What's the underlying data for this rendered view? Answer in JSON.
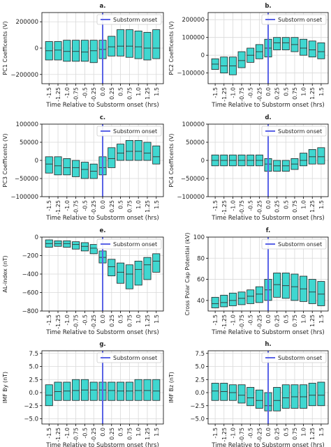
{
  "figure": {
    "colors": {
      "box_fill": "#3fd7d0",
      "box_edge": "#1f1f1f",
      "median": "#333333",
      "onset_line": "#5a63e6",
      "grid": "#d9d9d9"
    }
  },
  "chart_data": [
    {
      "panel_letter": "a.",
      "type": "box",
      "ylabel": "PC1 Coefficents (V)",
      "xlabel": "Time Relative to Substorm onset (hrs)",
      "legend": "Substorm onset",
      "ylim": [
        -270000,
        270000
      ],
      "yticks": [
        -200000,
        0,
        200000
      ],
      "yticklabels": [
        "−200000",
        "0",
        "200000"
      ],
      "x": [
        -1.5,
        -1.25,
        -1.0,
        -0.75,
        -0.5,
        -0.25,
        0.0,
        0.25,
        0.5,
        0.75,
        1.0,
        1.25,
        1.5
      ],
      "xticklabels": [
        "-1.5",
        "-1.25",
        "-1.0",
        "-0.75",
        "-0.5",
        "-0.25",
        "0.0",
        "0.25",
        "0.5",
        "0.75",
        "1.0",
        "1.25",
        "1.5"
      ],
      "q1": [
        -90000,
        -90000,
        -100000,
        -100000,
        -100000,
        -110000,
        -80000,
        -60000,
        -60000,
        -70000,
        -80000,
        -90000,
        -80000
      ],
      "median": [
        -20000,
        -15000,
        -25000,
        -25000,
        -30000,
        -20000,
        -10000,
        10000,
        15000,
        15000,
        10000,
        0,
        0
      ],
      "q3": [
        50000,
        50000,
        60000,
        60000,
        60000,
        60000,
        60000,
        90000,
        140000,
        140000,
        130000,
        120000,
        140000
      ]
    },
    {
      "panel_letter": "b.",
      "type": "box",
      "ylabel": "PC2 Coefficents (V)",
      "xlabel": "Time Relative to Substorm onset (hrs)",
      "legend": "Substorm onset",
      "ylim": [
        -160000,
        240000
      ],
      "yticks": [
        -100000,
        0,
        100000,
        200000
      ],
      "yticklabels": [
        "−100000",
        "0",
        "100000",
        "200000"
      ],
      "x": [
        -1.5,
        -1.25,
        -1.0,
        -0.75,
        -0.5,
        -0.25,
        0.0,
        0.25,
        0.5,
        0.75,
        1.0,
        1.25,
        1.5
      ],
      "xticklabels": [
        "-1.5",
        "-1.25",
        "-1.0",
        "-0.75",
        "-0.5",
        "-0.25",
        "0.0",
        "0.25",
        "0.5",
        "0.75",
        "1.0",
        "1.25",
        "1.5"
      ],
      "q1": [
        -80000,
        -100000,
        -110000,
        -70000,
        -40000,
        -20000,
        -10000,
        30000,
        30000,
        20000,
        0,
        -10000,
        -20000
      ],
      "median": [
        -50000,
        -60000,
        -60000,
        -30000,
        0,
        20000,
        40000,
        70000,
        70000,
        60000,
        40000,
        30000,
        20000
      ],
      "q3": [
        -20000,
        -10000,
        -10000,
        20000,
        40000,
        60000,
        90000,
        100000,
        100000,
        100000,
        90000,
        80000,
        70000
      ]
    },
    {
      "panel_letter": "c.",
      "type": "box",
      "ylabel": "PC3 Coefficents (V)",
      "xlabel": "Time Relative to Substorm onset (hrs)",
      "legend": "Substorm onset",
      "ylim": [
        -100000,
        100000
      ],
      "yticks": [
        -100000,
        -50000,
        0,
        50000,
        100000
      ],
      "yticklabels": [
        "−100000",
        "−50000",
        "0",
        "50000",
        "100000"
      ],
      "x": [
        -1.5,
        -1.25,
        -1.0,
        -0.75,
        -0.5,
        -0.25,
        0.0,
        0.25,
        0.5,
        0.75,
        1.0,
        1.25,
        1.5
      ],
      "xticklabels": [
        "-1.5",
        "-1.25",
        "-1.0",
        "-0.75",
        "-0.5",
        "-0.25",
        "0.0",
        "0.25",
        "0.5",
        "0.75",
        "1.0",
        "1.25",
        "1.5"
      ],
      "q1": [
        -35000,
        -40000,
        -40000,
        -45000,
        -50000,
        -50000,
        -40000,
        -20000,
        0,
        0,
        0,
        0,
        -10000
      ],
      "median": [
        -10000,
        -15000,
        -20000,
        -20000,
        -25000,
        -30000,
        -20000,
        5000,
        20000,
        25000,
        25000,
        20000,
        10000
      ],
      "q3": [
        10000,
        10000,
        5000,
        0,
        -5000,
        -10000,
        10000,
        35000,
        45000,
        55000,
        55000,
        50000,
        40000
      ]
    },
    {
      "panel_letter": "d.",
      "type": "box",
      "ylabel": "PC4 Coefficents (V)",
      "xlabel": "Time Relative to Substorm onset (hrs)",
      "legend": "Substorm onset",
      "ylim": [
        -100000,
        100000
      ],
      "yticks": [
        -100000,
        -50000,
        0,
        50000,
        100000
      ],
      "yticklabels": [
        "−100000",
        "−50000",
        "0",
        "50000",
        "100000"
      ],
      "x": [
        -1.5,
        -1.25,
        -1.0,
        -0.75,
        -0.5,
        -0.25,
        0.0,
        0.25,
        0.5,
        0.75,
        1.0,
        1.25,
        1.5
      ],
      "xticklabels": [
        "-1.5",
        "-1.25",
        "-1.0",
        "-0.75",
        "-0.5",
        "-0.25",
        "0.0",
        "0.25",
        "0.5",
        "0.75",
        "1.0",
        "1.25",
        "1.5"
      ],
      "q1": [
        -15000,
        -15000,
        -15000,
        -15000,
        -15000,
        -15000,
        -30000,
        -30000,
        -30000,
        -25000,
        -15000,
        -10000,
        -10000
      ],
      "median": [
        0,
        0,
        0,
        0,
        0,
        0,
        -10000,
        -15000,
        -15000,
        -10000,
        0,
        10000,
        10000
      ],
      "q3": [
        15000,
        15000,
        15000,
        15000,
        15000,
        15000,
        5000,
        0,
        0,
        5000,
        20000,
        30000,
        35000
      ]
    },
    {
      "panel_letter": "e.",
      "type": "box",
      "ylabel": "AL-index (nT)",
      "xlabel": "Time Relative to Substorm onset (hrs)",
      "legend": "Substorm onset",
      "ylim": [
        -800,
        0
      ],
      "yticks": [
        -800,
        -600,
        -400,
        -200,
        0
      ],
      "yticklabels": [
        "−800",
        "−600",
        "−400",
        "−200",
        "0"
      ],
      "x": [
        -1.5,
        -1.25,
        -1.0,
        -0.75,
        -0.5,
        -0.25,
        0.0,
        0.25,
        0.5,
        0.75,
        1.0,
        1.25,
        1.5
      ],
      "xticklabels": [
        "-1.5",
        "-1.25",
        "-1.0",
        "-0.75",
        "-0.5",
        "-0.25",
        "0.0",
        "0.25",
        "0.5",
        "0.75",
        "1.0",
        "1.25",
        "1.5"
      ],
      "q1": [
        -110,
        -100,
        -110,
        -130,
        -150,
        -180,
        -280,
        -420,
        -500,
        -560,
        -520,
        -460,
        -380
      ],
      "median": [
        -70,
        -70,
        -70,
        -80,
        -100,
        -120,
        -220,
        -320,
        -380,
        -400,
        -350,
        -300,
        -260
      ],
      "q3": [
        -30,
        -40,
        -40,
        -50,
        -60,
        -80,
        -150,
        -240,
        -280,
        -300,
        -260,
        -220,
        -180
      ]
    },
    {
      "panel_letter": "f.",
      "type": "box",
      "ylabel": "Cross Polar Cap Potential (kV)",
      "xlabel": "Time Relative to Substorm onset (hrs)",
      "legend": "Substorm onset",
      "ylim": [
        30,
        100
      ],
      "yticks": [
        40,
        60,
        80,
        100
      ],
      "yticklabels": [
        "40",
        "60",
        "80",
        "100"
      ],
      "x": [
        -1.5,
        -1.25,
        -1.0,
        -0.75,
        -0.5,
        -0.25,
        0.0,
        0.25,
        0.5,
        0.75,
        1.0,
        1.25,
        1.5
      ],
      "xticklabels": [
        "-1.5",
        "-1.25",
        "-1.0",
        "-0.75",
        "-0.5",
        "-0.25",
        "0.0",
        "0.25",
        "0.5",
        "0.75",
        "1.0",
        "1.25",
        "1.5"
      ],
      "q1": [
        33,
        34,
        35,
        36,
        37,
        38,
        40,
        43,
        42,
        40,
        39,
        37,
        35
      ],
      "median": [
        37,
        38,
        40,
        42,
        44,
        46,
        50,
        55,
        54,
        53,
        51,
        48,
        46
      ],
      "q3": [
        43,
        45,
        47,
        48,
        50,
        53,
        60,
        66,
        66,
        65,
        63,
        60,
        58
      ]
    },
    {
      "panel_letter": "g.",
      "type": "box",
      "ylabel": "IMF By (nT)",
      "xlabel": "Time Relative to Substorm onset (hrs)",
      "legend": "Substorm onset",
      "ylim": [
        -6,
        8
      ],
      "yticks": [
        -5.0,
        -2.5,
        0.0,
        2.5,
        5.0,
        7.5
      ],
      "yticklabels": [
        "−5.0",
        "−2.5",
        "0.0",
        "2.5",
        "5.0",
        "7.5"
      ],
      "x": [
        -1.5,
        -1.25,
        -1.0,
        -0.75,
        -0.5,
        -0.25,
        0.0,
        0.25,
        0.5,
        0.75,
        1.0,
        1.25,
        1.5
      ],
      "xticklabels": [
        "-1.5",
        "-1.25",
        "-1.0",
        "-0.75",
        "-0.5",
        "-0.25",
        "0.0",
        "0.25",
        "0.5",
        "0.75",
        "1.0",
        "1.25",
        "1.5"
      ],
      "q1": [
        -2.5,
        -1.5,
        -1.5,
        -1.5,
        -1.5,
        -1.5,
        -1.5,
        -1.5,
        -1.5,
        -1.5,
        -1.5,
        -1.5,
        -1.5
      ],
      "median": [
        -0.5,
        0.2,
        0.3,
        0.4,
        0.5,
        0.5,
        0.5,
        0.4,
        0.3,
        0.3,
        0.4,
        0.4,
        0.3
      ],
      "q3": [
        1.5,
        2.0,
        2.0,
        2.5,
        2.5,
        2.0,
        2.0,
        2.0,
        2.0,
        2.0,
        2.5,
        2.5,
        2.5
      ]
    },
    {
      "panel_letter": "h.",
      "type": "box",
      "ylabel": "IMF Bz (nT)",
      "xlabel": "Time Relative to Substorm onset (hrs)",
      "legend": "Substorm onset",
      "ylim": [
        -6,
        8
      ],
      "yticks": [
        -5.0,
        -2.5,
        0.0,
        2.5,
        5.0,
        7.5
      ],
      "yticklabels": [
        "−5.0",
        "−2.5",
        "0.0",
        "2.5",
        "5.0",
        "7.5"
      ],
      "x": [
        -1.5,
        -1.25,
        -1.0,
        -0.75,
        -0.5,
        -0.25,
        0.0,
        0.25,
        0.5,
        0.75,
        1.0,
        1.25,
        1.5
      ],
      "xticklabels": [
        "-1.5",
        "-1.25",
        "-1.0",
        "-0.75",
        "-0.5",
        "-0.25",
        "0.0",
        "0.25",
        "0.5",
        "0.75",
        "1.0",
        "1.25",
        "1.5"
      ],
      "q1": [
        -1.5,
        -1.5,
        -1.5,
        -2.0,
        -2.5,
        -3.0,
        -3.5,
        -3.5,
        -3.0,
        -3.0,
        -3.0,
        -2.5,
        -2.5
      ],
      "median": [
        0.3,
        0.2,
        0.0,
        -0.5,
        -1.0,
        -1.5,
        -2.5,
        -1.5,
        -1.0,
        -0.8,
        -0.8,
        -0.5,
        -0.5
      ],
      "q3": [
        1.8,
        1.8,
        1.5,
        1.5,
        1.0,
        0.5,
        0.0,
        1.0,
        1.5,
        1.5,
        1.5,
        1.8,
        2.0
      ]
    }
  ]
}
